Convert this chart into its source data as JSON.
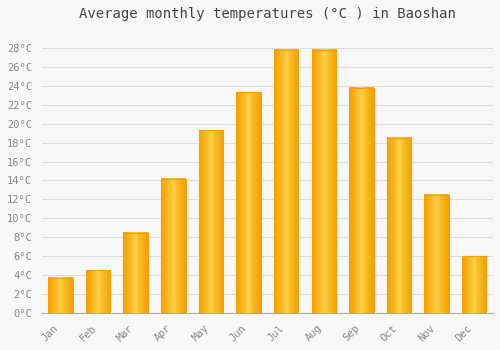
{
  "title": "Average monthly temperatures (°C ) in Baoshan",
  "months": [
    "Jan",
    "Feb",
    "Mar",
    "Apr",
    "May",
    "Jun",
    "Jul",
    "Aug",
    "Sep",
    "Oct",
    "Nov",
    "Dec"
  ],
  "values": [
    3.7,
    4.5,
    8.5,
    14.2,
    19.3,
    23.3,
    27.8,
    27.8,
    23.8,
    18.5,
    12.5,
    6.0
  ],
  "bar_color_center": "#FFD54F",
  "bar_color_edge": "#F5A000",
  "background_color": "#F8F8F8",
  "grid_color": "#DDDDDD",
  "text_color": "#888888",
  "ylim": [
    0,
    30
  ],
  "yticks": [
    0,
    2,
    4,
    6,
    8,
    10,
    12,
    14,
    16,
    18,
    20,
    22,
    24,
    26,
    28
  ],
  "title_fontsize": 10,
  "tick_fontsize": 7.5,
  "font_family": "monospace"
}
